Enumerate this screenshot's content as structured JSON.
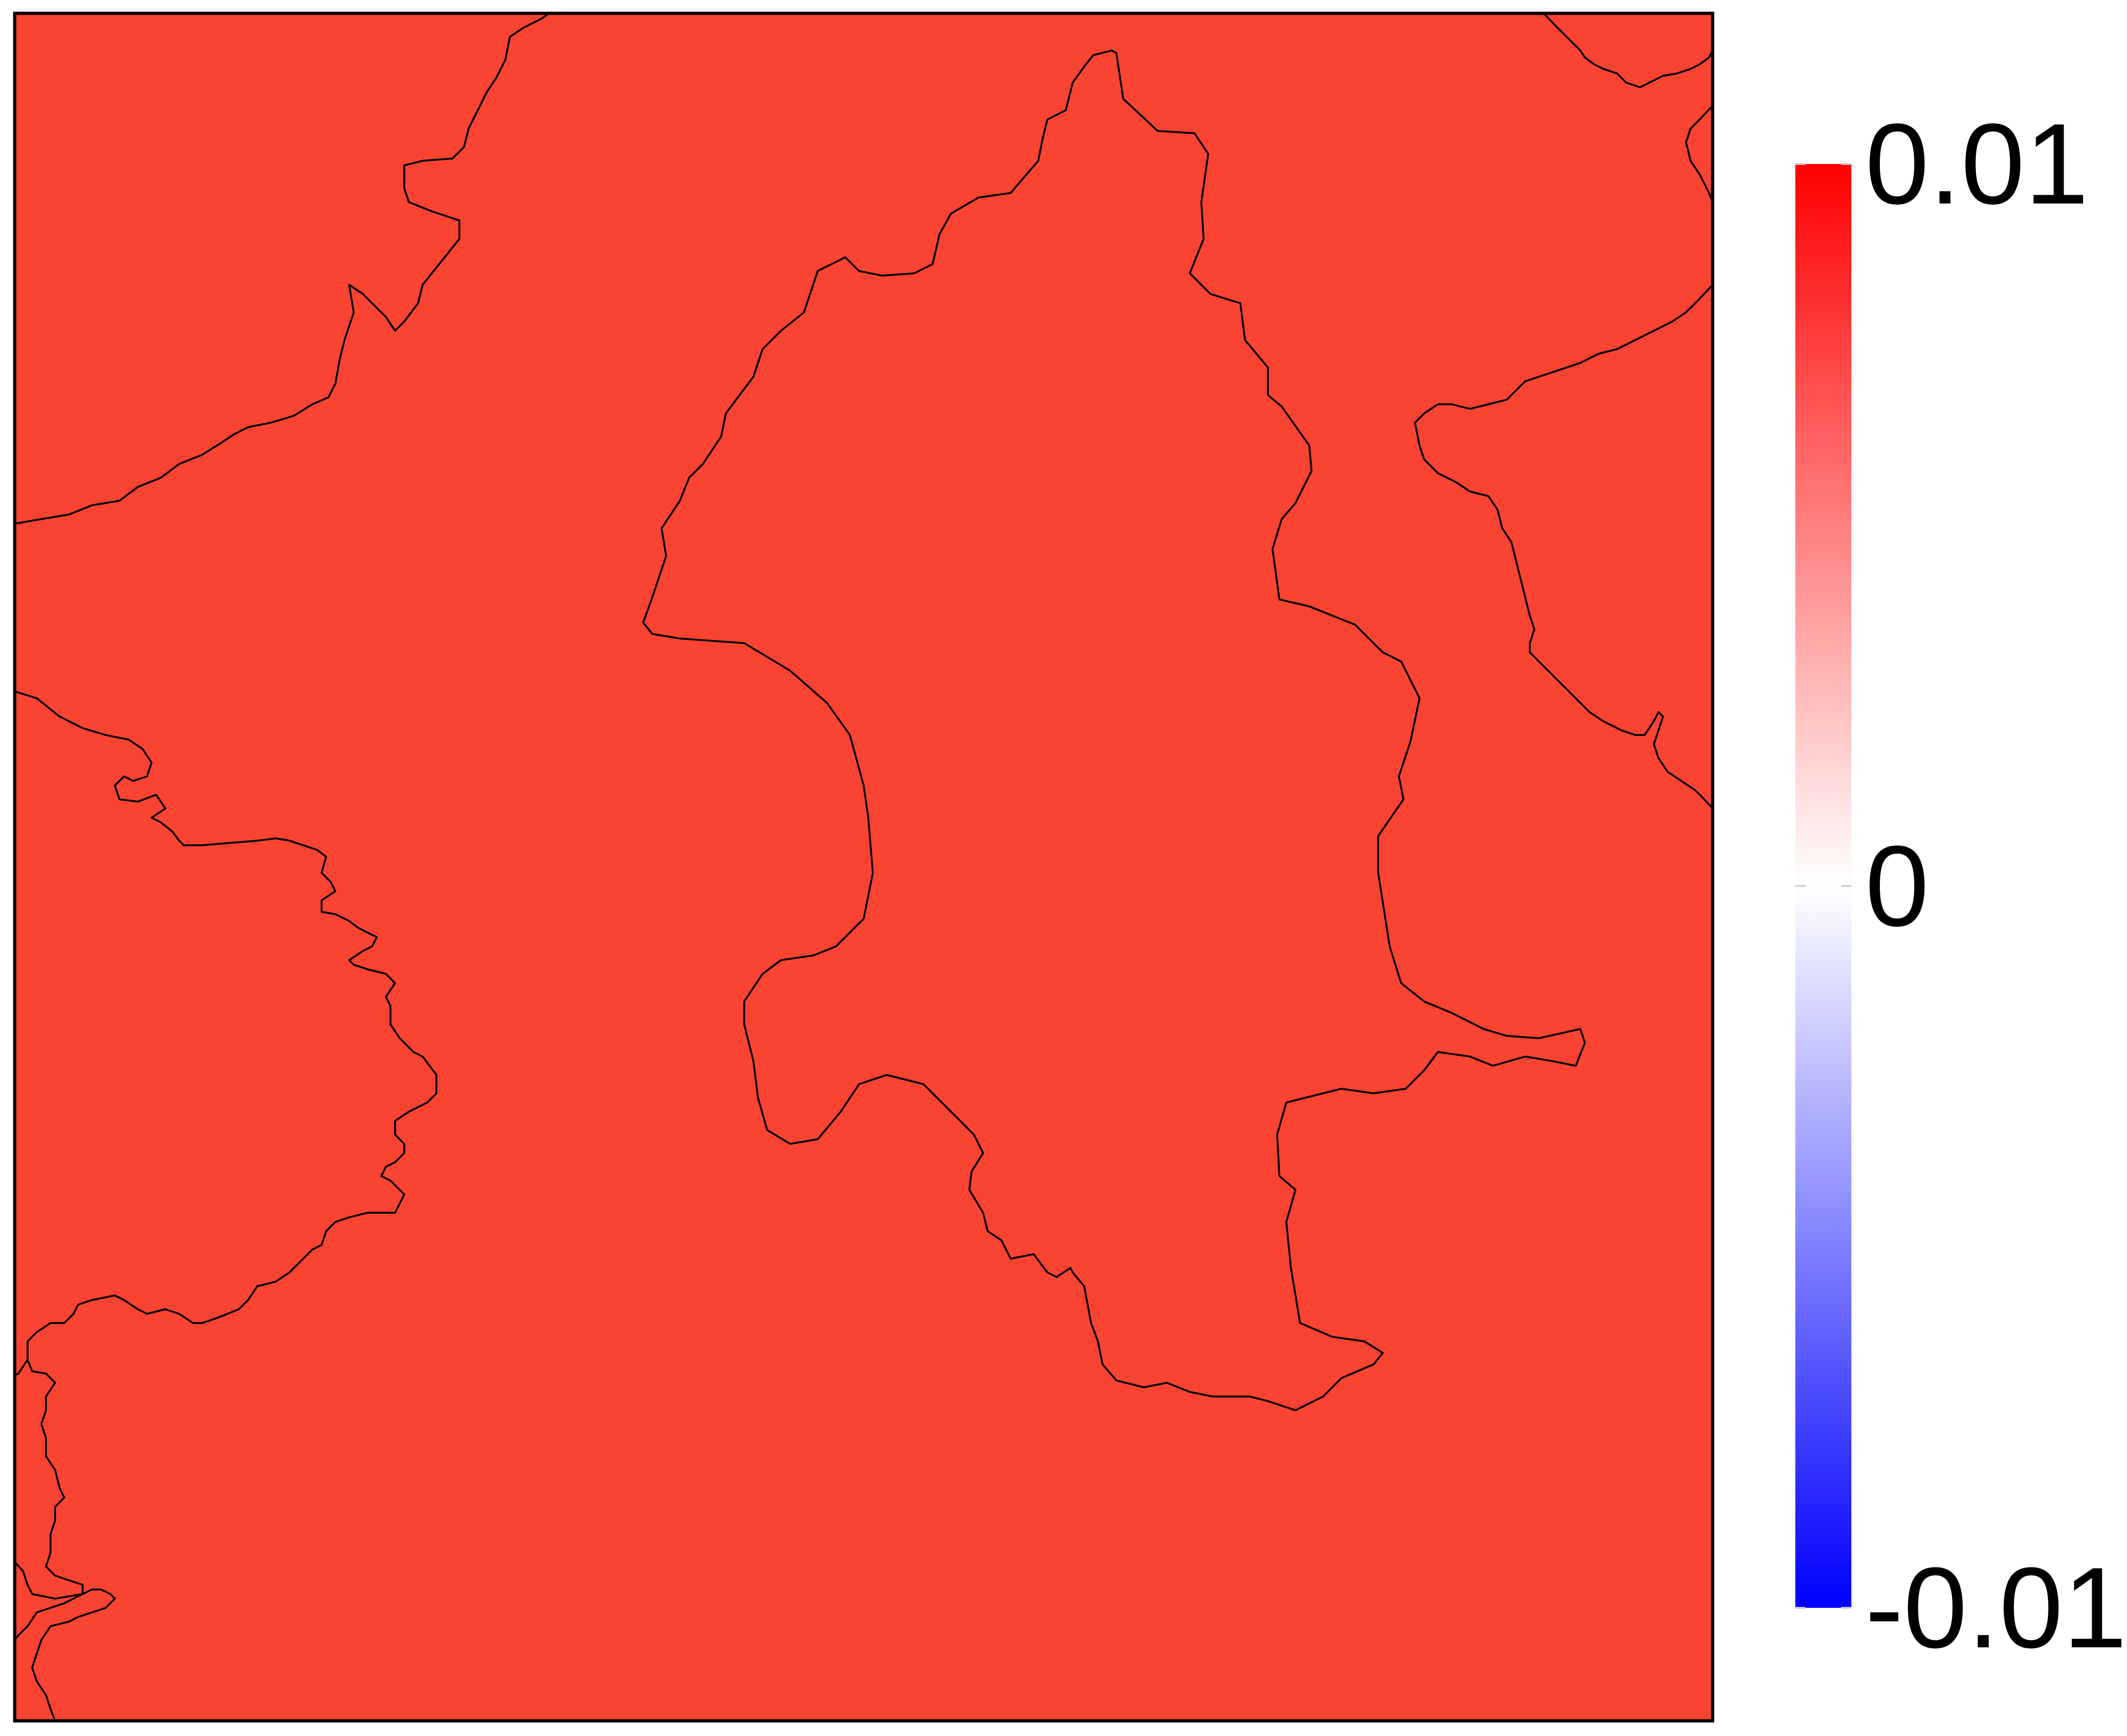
{
  "map": {
    "field_color": "#fb4331",
    "frame_color": "#000000",
    "boundary_color": "#000000"
  },
  "colorbar": {
    "min": -0.01,
    "max": 0.01,
    "gradient_colors": [
      "#0000ff",
      "#ffffff",
      "#ff0000"
    ],
    "ticks": [
      {
        "value": 0.01,
        "label": "0.01"
      },
      {
        "value": 0,
        "label": "0"
      },
      {
        "value": -0.01,
        "label": "-0.01"
      }
    ]
  }
}
